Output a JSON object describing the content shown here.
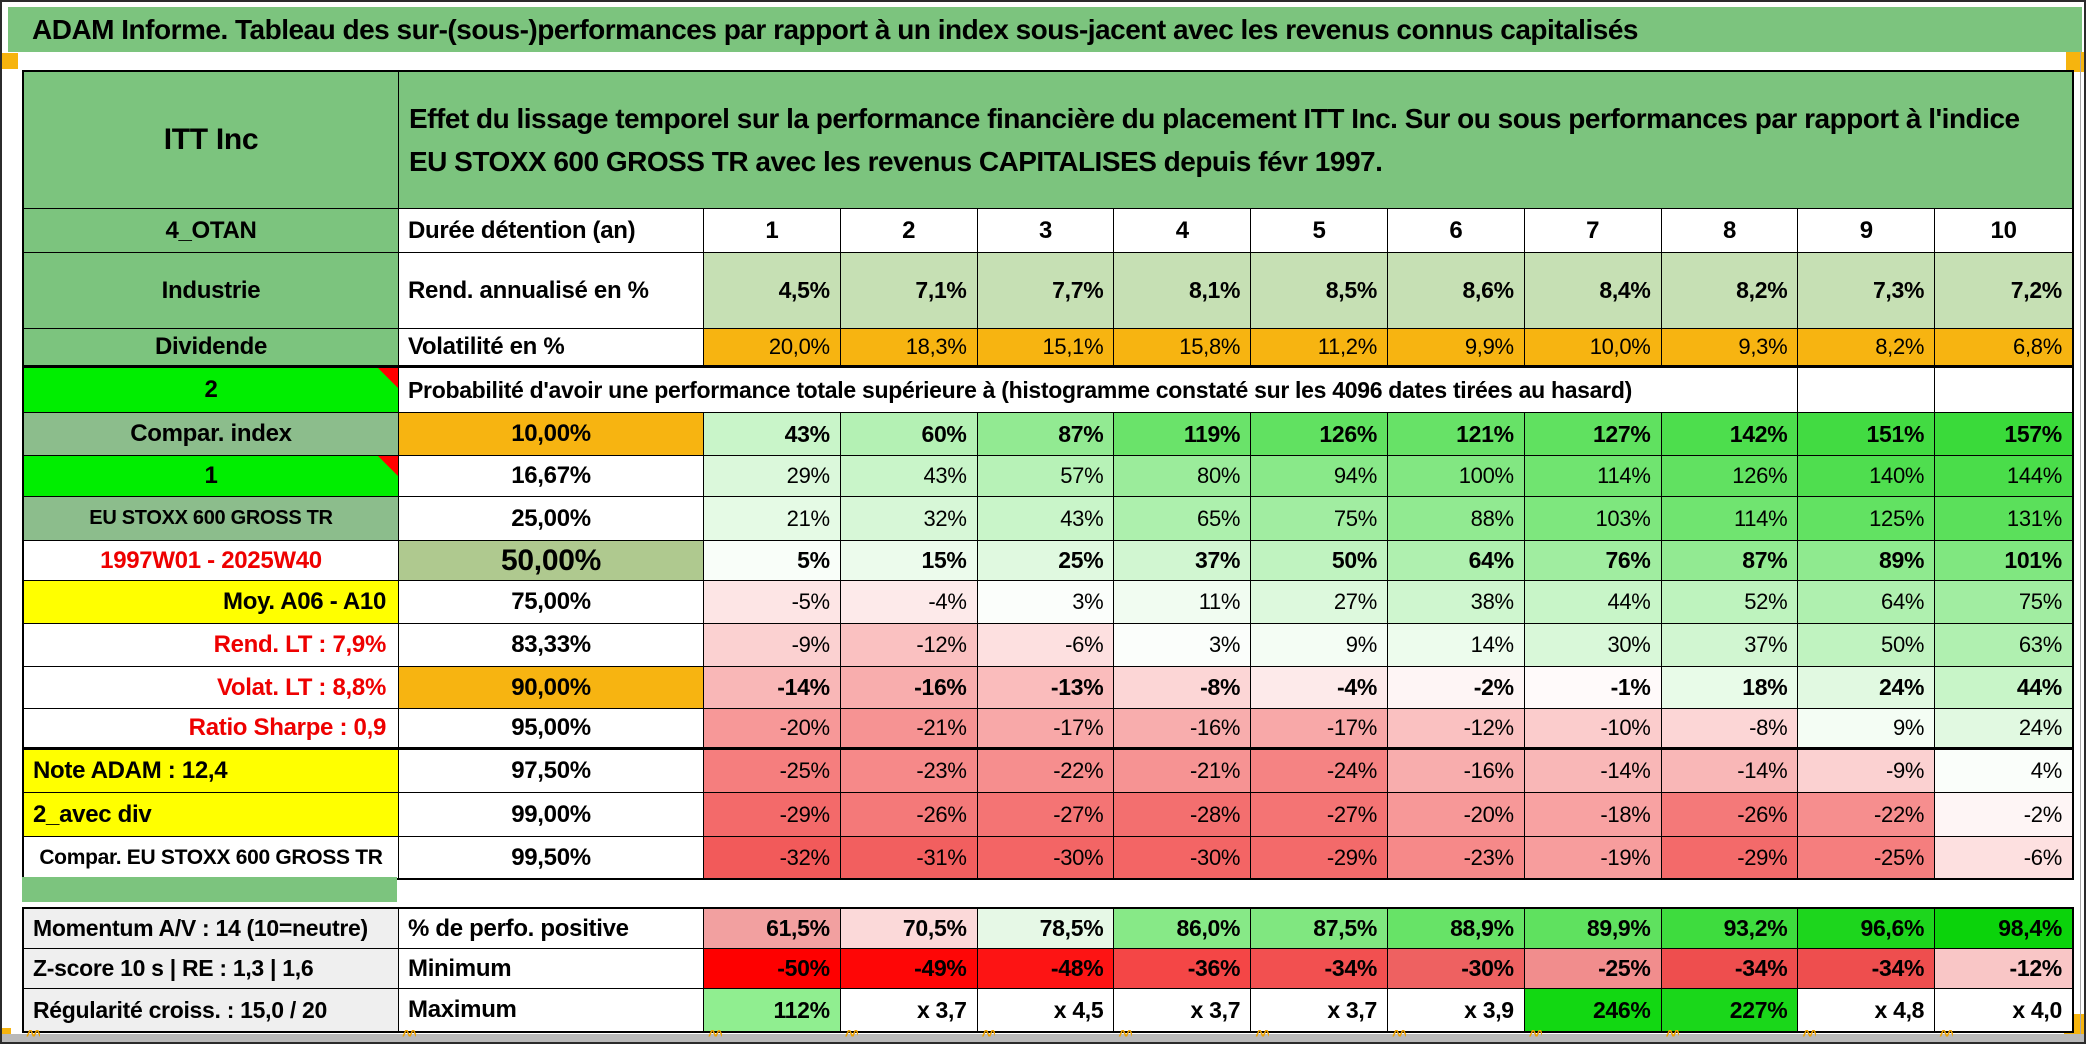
{
  "title": "ADAM Informe. Tableau des sur-(sous-)performances par rapport à un index sous-jacent avec les revenus connus capitalisés",
  "header": {
    "security": "ITT Inc",
    "description": "Effet du lissage temporel sur la performance financière du placement ITT Inc. Sur ou sous performances par rapport à l'indice EU STOXX 600 GROSS TR avec les revenus CAPITALISES depuis févr 1997."
  },
  "columns": {
    "corner_label": "4_OTAN",
    "metric_header": "Durée détention (an)",
    "years": [
      "1",
      "2",
      "3",
      "4",
      "5",
      "6",
      "7",
      "8",
      "9",
      "10"
    ]
  },
  "metrics": [
    {
      "label": "Industrie",
      "metric": "Rend. annualisé en %",
      "values": [
        "4,5%",
        "7,1%",
        "7,7%",
        "8,1%",
        "8,5%",
        "8,6%",
        "8,4%",
        "8,2%",
        "7,3%",
        "7,2%"
      ]
    },
    {
      "label": "Dividende",
      "metric": "Volatilité en %",
      "values": [
        "20,0%",
        "18,3%",
        "15,1%",
        "15,8%",
        "11,2%",
        "9,9%",
        "10,0%",
        "9,3%",
        "8,2%",
        "6,8%"
      ]
    }
  ],
  "probability": {
    "corner_label": "2",
    "heading": "Probabilité d'avoir une performance totale supérieure à (histogramme constaté sur les 4096 dates tirées au hasard)",
    "rows": [
      {
        "label": "Compar. index",
        "threshold": "10,00%",
        "values": [
          "43%",
          "60%",
          "87%",
          "119%",
          "126%",
          "121%",
          "127%",
          "142%",
          "151%",
          "157%"
        ]
      },
      {
        "label": "1",
        "threshold": "16,67%",
        "values": [
          "29%",
          "43%",
          "57%",
          "80%",
          "94%",
          "100%",
          "114%",
          "126%",
          "140%",
          "144%"
        ]
      },
      {
        "label": "EU STOXX 600 GROSS TR",
        "threshold": "25,00%",
        "values": [
          "21%",
          "32%",
          "43%",
          "65%",
          "75%",
          "88%",
          "103%",
          "114%",
          "125%",
          "131%"
        ]
      },
      {
        "label": "1997W01 - 2025W40",
        "threshold": "50,00%",
        "values": [
          "5%",
          "15%",
          "25%",
          "37%",
          "50%",
          "64%",
          "76%",
          "87%",
          "89%",
          "101%"
        ]
      },
      {
        "label": "Moy. A06 - A10",
        "threshold": "75,00%",
        "values": [
          "-5%",
          "-4%",
          "3%",
          "11%",
          "27%",
          "38%",
          "44%",
          "52%",
          "64%",
          "75%"
        ]
      },
      {
        "label": "Rend. LT :   7,9%",
        "threshold": "83,33%",
        "values": [
          "-9%",
          "-12%",
          "-6%",
          "3%",
          "9%",
          "14%",
          "30%",
          "37%",
          "50%",
          "63%"
        ]
      },
      {
        "label": "Volat. LT :   8,8%",
        "threshold": "90,00%",
        "values": [
          "-14%",
          "-16%",
          "-13%",
          "-8%",
          "-4%",
          "-2%",
          "-1%",
          "18%",
          "24%",
          "44%"
        ]
      },
      {
        "label": "Ratio Sharpe :   0,9",
        "threshold": "95,00%",
        "values": [
          "-20%",
          "-21%",
          "-17%",
          "-16%",
          "-17%",
          "-12%",
          "-10%",
          "-8%",
          "9%",
          "24%"
        ]
      },
      {
        "label": "Note ADAM : 12,4",
        "threshold": "97,50%",
        "values": [
          "-25%",
          "-23%",
          "-22%",
          "-21%",
          "-24%",
          "-16%",
          "-14%",
          "-14%",
          "-9%",
          "4%"
        ]
      },
      {
        "label": "2_avec div",
        "threshold": "99,00%",
        "values": [
          "-29%",
          "-26%",
          "-27%",
          "-28%",
          "-27%",
          "-20%",
          "-18%",
          "-26%",
          "-22%",
          "-2%"
        ]
      },
      {
        "label": "Compar. EU STOXX 600 GROSS TR",
        "threshold": "99,50%",
        "values": [
          "-32%",
          "-31%",
          "-30%",
          "-30%",
          "-29%",
          "-23%",
          "-19%",
          "-29%",
          "-25%",
          "-6%"
        ]
      }
    ]
  },
  "summary": {
    "rows": [
      {
        "label": "Momentum A/V : 14 (10=neutre)",
        "metric": "% de perfo. positive",
        "values": [
          "61,5%",
          "70,5%",
          "78,5%",
          "86,0%",
          "87,5%",
          "88,9%",
          "89,9%",
          "93,2%",
          "96,6%",
          "98,4%"
        ],
        "colors": [
          "#F2A0A0",
          "#FBD9D9",
          "#E6F8E6",
          "#87E987",
          "#80E780",
          "#67E367",
          "#5FE15F",
          "#3EDC3E",
          "#1DD61D",
          "#0BD30B"
        ]
      },
      {
        "label": "Z-score 10 s | RE : 1,3 | 1,6",
        "metric": "Minimum",
        "values": [
          "-50%",
          "-49%",
          "-48%",
          "-36%",
          "-34%",
          "-30%",
          "-25%",
          "-34%",
          "-34%",
          "-12%"
        ],
        "colors": [
          "#FE0000",
          "#FE0606",
          "#FD1414",
          "#F44646",
          "#F25050",
          "#EE6161",
          "#F18D8D",
          "#EE4E4E",
          "#EE4E4E",
          "#F9C6C6"
        ]
      },
      {
        "label": "Régularité croiss. : 15,0 / 20",
        "metric": "Maximum",
        "values": [
          "112%",
          "x 3,7",
          "x 4,5",
          "x 3,7",
          "x 3,7",
          "x 3,9",
          "246%",
          "227%",
          "x 4,8",
          "x 4,0"
        ],
        "colors": [
          "#90EE90",
          "#FFFFFF",
          "#FFFFFF",
          "#FFFFFF",
          "#FFFFFF",
          "#FFFFFF",
          "#12D812",
          "#1AD71A",
          "#FFFFFF",
          "#FFFFFF"
        ]
      }
    ]
  },
  "colors": {
    "header_green": "#7CC47E",
    "label_green": "#8CBD8C",
    "sage_green": "#AFC98F",
    "light_green": "#C6E0B4",
    "orange": "#F7B411",
    "yellow": "#FFFF00",
    "bright_green": "#00EE00",
    "summary_label_gray": "#EFEFEF",
    "scale_green_max": "#3ADA3A",
    "scale_red_min": "#F15050",
    "red_text": "#EE0000",
    "marker_orange": "#F6B40E"
  }
}
